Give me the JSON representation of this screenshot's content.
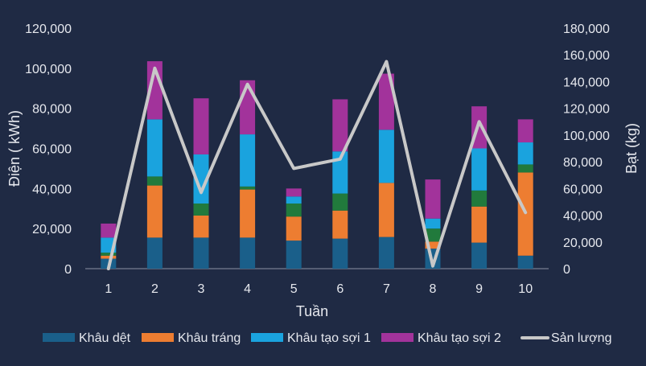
{
  "chart_data": {
    "type": "bar",
    "stacked": true,
    "categories": [
      "1",
      "2",
      "3",
      "4",
      "5",
      "6",
      "7",
      "8",
      "9",
      "10"
    ],
    "series": [
      {
        "name": "Khâu dệt",
        "color": "#1a5f8a",
        "values": [
          5000,
          15500,
          15500,
          15500,
          14000,
          15000,
          15800,
          10000,
          13000,
          6500
        ]
      },
      {
        "name": "Khâu tráng",
        "color": "#ed7d31",
        "values": [
          1500,
          26000,
          11000,
          24000,
          12000,
          14000,
          27000,
          3500,
          18000,
          41500
        ]
      },
      {
        "name": "",
        "color": "#217a3c",
        "values": [
          1500,
          4500,
          6000,
          1500,
          6500,
          8500,
          0,
          6500,
          8000,
          4000
        ]
      },
      {
        "name": "Khâu tạo sợi 1",
        "color": "#1aa3de",
        "values": [
          7500,
          28500,
          24500,
          26000,
          3500,
          21000,
          26500,
          5000,
          21000,
          11000
        ]
      },
      {
        "name": "Khâu tạo sợi 2",
        "color": "#a2339b",
        "values": [
          7000,
          29000,
          28000,
          27000,
          4000,
          26000,
          28000,
          19500,
          21000,
          11500
        ]
      }
    ],
    "line_series": {
      "name": "Sản lượng",
      "color": "#c8c8c8",
      "axis": "right",
      "values": [
        0,
        150000,
        57000,
        138000,
        75000,
        82000,
        155000,
        2000,
        110000,
        42000
      ]
    },
    "xlabel": "Tuần",
    "ylabel": "Điện ( kWh)",
    "y2label": "Bạt (kg)",
    "ylim": [
      0,
      120000
    ],
    "y2lim": [
      0,
      180000
    ],
    "yticks": [
      "0",
      "20,000",
      "40,000",
      "60,000",
      "80,000",
      "100,000",
      "120,000"
    ],
    "y2ticks": [
      "0",
      "20,000",
      "40,000",
      "60,000",
      "80,000",
      "100,000",
      "120,000",
      "140,000",
      "160,000",
      "180,000"
    ],
    "legend_position": "bottom",
    "grid": false
  }
}
